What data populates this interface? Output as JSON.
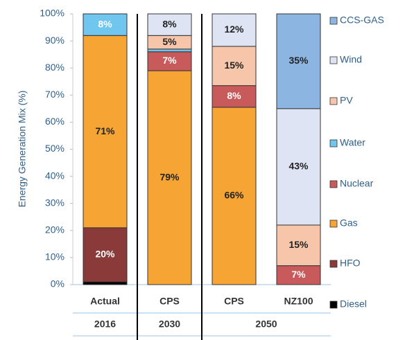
{
  "chart_data": {
    "type": "stacked_bar",
    "y_label": "Energy Generation Mix (%)",
    "categories": [
      "Actual",
      "CPS",
      "CPS",
      "NZ100"
    ],
    "groups": [
      {
        "name": "2016",
        "count": 1
      },
      {
        "name": "2030",
        "count": 1
      },
      {
        "name": "2050",
        "count": 2
      }
    ],
    "series": [
      {
        "name": "Diesel",
        "color": "#000000",
        "values": [
          1,
          0,
          0,
          0
        ],
        "value_labels": [
          null,
          null,
          null,
          null
        ]
      },
      {
        "name": "HFO",
        "color": "#8b3a3a",
        "values": [
          20,
          0,
          0,
          0
        ],
        "value_labels": [
          "20%",
          null,
          null,
          null
        ]
      },
      {
        "name": "Gas",
        "color": "#f6a535",
        "values": [
          71,
          79,
          65.5,
          0
        ],
        "value_labels": [
          "71%",
          "79%",
          "66%",
          null
        ]
      },
      {
        "name": "Nuclear",
        "color": "#c95a5c",
        "values": [
          0,
          7,
          8,
          7
        ],
        "value_labels": [
          null,
          "7%",
          "8%",
          "7%"
        ]
      },
      {
        "name": "Water",
        "color": "#6fc6ef",
        "values": [
          8,
          1,
          0,
          0
        ],
        "value_labels": [
          "8%",
          null,
          null,
          null
        ]
      },
      {
        "name": "PV",
        "color": "#f7c6aa",
        "values": [
          0,
          5,
          14.5,
          15
        ],
        "value_labels": [
          null,
          "5%",
          "15%",
          "15%"
        ]
      },
      {
        "name": "Wind",
        "color": "#dfe4f4",
        "values": [
          0,
          8,
          12,
          43
        ],
        "value_labels": [
          null,
          "8%",
          "12%",
          "43%"
        ]
      },
      {
        "name": "CCS-GAS",
        "color": "#8db5e2",
        "values": [
          0,
          0,
          0,
          35
        ],
        "value_labels": [
          null,
          null,
          null,
          "35%"
        ]
      }
    ],
    "ylim": [
      0,
      100
    ],
    "yticks": [
      {
        "value": 0,
        "label": "0%"
      },
      {
        "value": 10,
        "label": "10%"
      },
      {
        "value": 20,
        "label": "20%"
      },
      {
        "value": 30,
        "label": "30%"
      },
      {
        "value": 40,
        "label": "40%"
      },
      {
        "value": 50,
        "label": "50%"
      },
      {
        "value": 60,
        "label": "60%"
      },
      {
        "value": 70,
        "label": "70%"
      },
      {
        "value": 80,
        "label": "80%"
      },
      {
        "value": 90,
        "label": "90%"
      },
      {
        "value": 100,
        "label": "100%"
      }
    ],
    "legend": "right",
    "grid": false
  }
}
